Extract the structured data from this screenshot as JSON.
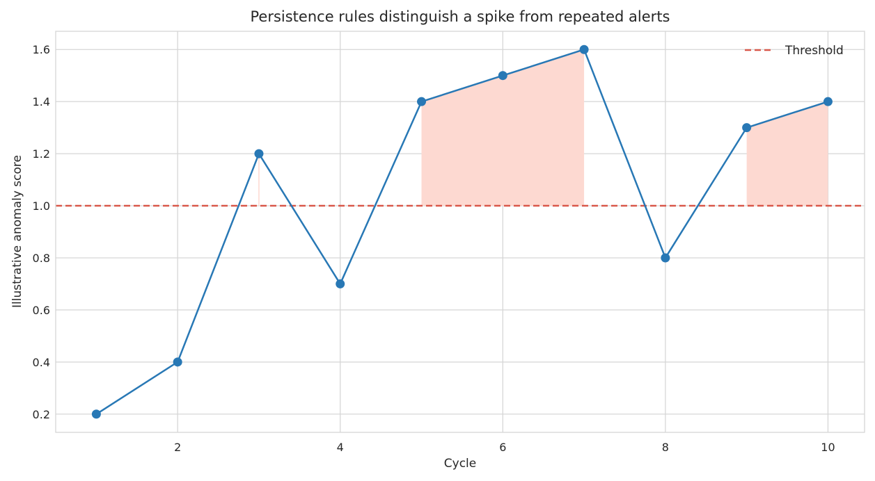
{
  "chart_data": {
    "type": "line",
    "title": "Persistence rules distinguish a spike from repeated alerts",
    "xlabel": "Cycle",
    "ylabel": "Illustrative anomaly score",
    "xlim": [
      0.5,
      10.45
    ],
    "ylim": [
      0.13,
      1.67
    ],
    "x_ticks": [
      2,
      4,
      6,
      8,
      10
    ],
    "y_ticks": [
      0.2,
      0.4,
      0.6,
      0.8,
      1.0,
      1.2,
      1.4,
      1.6
    ],
    "x_tick_labels": [
      "2",
      "4",
      "6",
      "8",
      "10"
    ],
    "y_tick_labels": [
      "0.2",
      "0.4",
      "0.6",
      "0.8",
      "1.0",
      "1.2",
      "1.4",
      "1.6"
    ],
    "grid": true,
    "legend_placement": "top-right",
    "series": [
      {
        "x": [
          1,
          2,
          3,
          4,
          5,
          6,
          7,
          8,
          9,
          10
        ],
        "values": [
          0.2,
          0.4,
          1.2,
          0.7,
          1.4,
          1.5,
          1.6,
          0.8,
          1.3,
          1.4
        ],
        "color": "#2878b5"
      }
    ],
    "threshold": {
      "name": "Threshold",
      "value": 1.0,
      "color": "#d9584a",
      "style": "dashed"
    },
    "highlighted_ranges": [
      [
        3,
        3
      ],
      [
        5,
        7
      ],
      [
        9,
        10
      ]
    ],
    "highlight_color": "#fdd9d1",
    "grid_color": "#d6d6d6"
  }
}
